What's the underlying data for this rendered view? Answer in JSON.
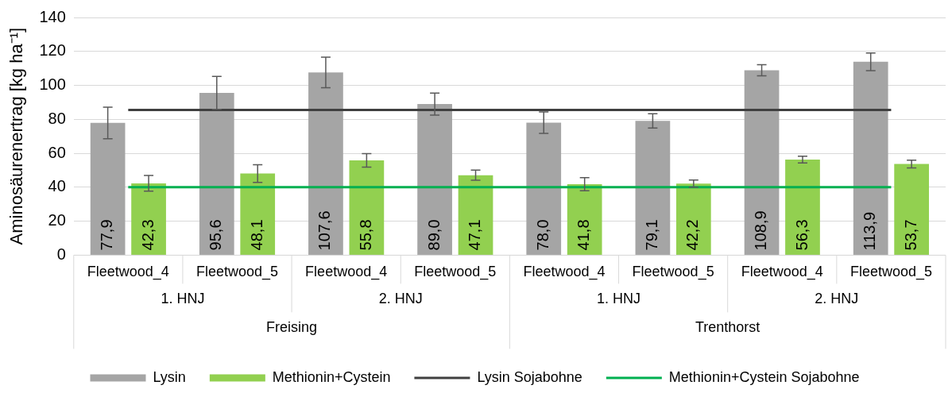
{
  "chart_data": {
    "type": "bar",
    "ylabel": "Aminosäurenertrag [kg ha⁻¹]",
    "categories": [
      "Fleetwood_4",
      "Fleetwood_5",
      "Fleetwood_4",
      "Fleetwood_5",
      "Fleetwood_4",
      "Fleetwood_5",
      "Fleetwood_4",
      "Fleetwood_5"
    ],
    "annotations": [
      "1. HNJ",
      "2. HNJ",
      "1. HNJ",
      "2. HNJ",
      "Freising",
      "Trenthorst"
    ],
    "series": [
      {
        "name": "Lysin",
        "color": "#a5a5a5",
        "values": [
          77.9,
          95.6,
          107.6,
          89.0,
          78.0,
          79.1,
          108.9,
          113.9
        ],
        "value_labels": [
          "77,9",
          "95,6",
          "107,6",
          "89,0",
          "78,0",
          "79,1",
          "108,9",
          "113,9"
        ],
        "errors": [
          9.3,
          9.7,
          9.0,
          6.5,
          6.3,
          4.2,
          3.3,
          5.2
        ]
      },
      {
        "name": "Methionin+Cystein",
        "color": "#92d050",
        "values": [
          42.3,
          48.1,
          55.8,
          47.1,
          41.8,
          42.2,
          56.3,
          53.7
        ],
        "value_labels": [
          "42,3",
          "48,1",
          "55,8",
          "47,1",
          "41,8",
          "42,2",
          "56,3",
          "53,7"
        ],
        "errors": [
          4.6,
          5.2,
          4.0,
          3.0,
          3.9,
          2.1,
          2.0,
          2.3
        ]
      },
      {
        "name": "Lysin Sojabohne",
        "type": "line",
        "color": "#404040",
        "values": [
          85.5,
          85.5,
          85.5,
          85.5,
          85.5,
          85.5,
          85.5,
          85.5
        ]
      },
      {
        "name": "Methionin+Cystein Sojabohne",
        "type": "line",
        "color": "#00b050",
        "values": [
          40,
          40,
          40,
          40,
          40,
          40,
          40,
          40
        ]
      }
    ],
    "ylim": [
      0,
      140
    ],
    "yticks": [
      0,
      20,
      40,
      60,
      80,
      100,
      120,
      140
    ],
    "grid": "y",
    "legend": "bottom",
    "marker": "none"
  }
}
